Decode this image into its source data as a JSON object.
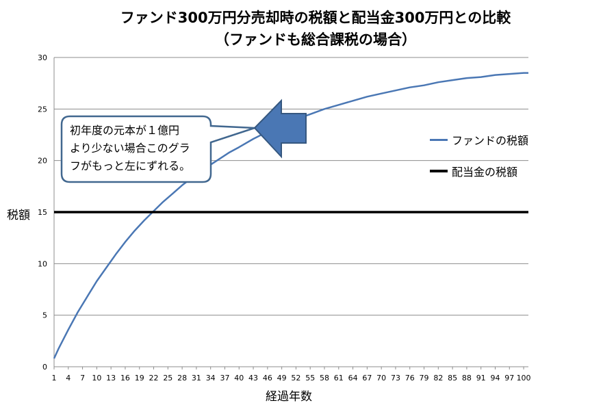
{
  "chart_data": {
    "type": "line",
    "title": "ファンド300万円分売却時の税額と配当金300万円との比較",
    "subtitle": "（ファンドも総合課税の場合）",
    "xlabel": "経過年数",
    "ylabel": "税額",
    "ylim": [
      0,
      30
    ],
    "yticks": [
      0,
      5,
      10,
      15,
      20,
      25,
      30
    ],
    "xticks": [
      1,
      4,
      7,
      10,
      13,
      16,
      19,
      22,
      25,
      28,
      31,
      34,
      37,
      40,
      43,
      46,
      49,
      52,
      55,
      58,
      61,
      64,
      67,
      70,
      73,
      76,
      79,
      82,
      85,
      88,
      91,
      94,
      97,
      100
    ],
    "xlim": [
      1,
      101
    ],
    "grid": true,
    "legend_position": "right",
    "series": [
      {
        "name": "ファンドの税額",
        "color": "#4a77b4",
        "x": [
          1,
          2,
          4,
          6,
          8,
          10,
          12,
          14,
          16,
          18,
          20,
          22,
          24,
          26,
          28,
          30,
          32,
          34,
          36,
          38,
          40,
          43,
          46,
          49,
          52,
          55,
          58,
          61,
          64,
          67,
          70,
          73,
          76,
          79,
          82,
          85,
          88,
          91,
          94,
          97,
          100,
          101
        ],
        "y": [
          0.8,
          1.8,
          3.6,
          5.3,
          6.8,
          8.3,
          9.6,
          10.9,
          12.1,
          13.2,
          14.2,
          15.1,
          16.0,
          16.8,
          17.6,
          18.3,
          18.9,
          19.6,
          20.2,
          20.8,
          21.3,
          22.1,
          22.8,
          23.4,
          24.0,
          24.5,
          25.0,
          25.4,
          25.8,
          26.2,
          26.5,
          26.8,
          27.1,
          27.3,
          27.6,
          27.8,
          28.0,
          28.1,
          28.3,
          28.4,
          28.5,
          28.5
        ]
      },
      {
        "name": "配当金の税額",
        "color": "#000000",
        "x": [
          1,
          101
        ],
        "y": [
          15,
          15
        ]
      }
    ],
    "annotation": {
      "text_lines": [
        "初年度の元本が１億円",
        "より少ない場合このグラ",
        "フがもっと左にずれる。"
      ]
    }
  }
}
